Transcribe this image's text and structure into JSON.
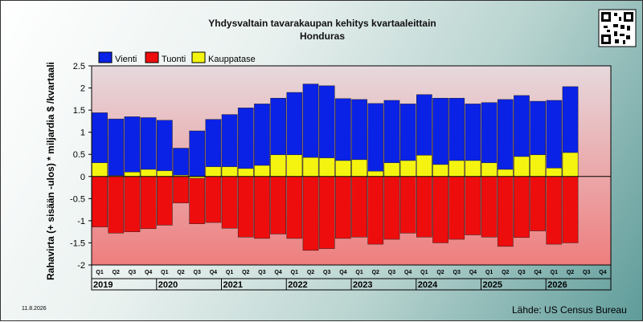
{
  "chart_data": {
    "type": "bar",
    "title": "Yhdysvaltain tavarakaupan kehitys kvartaaleittain",
    "subtitle": "Honduras",
    "ylabel": "Rahavirta (+ sisään -ulos)  * miljardia $ /kvartaali",
    "ylim": [
      -2,
      2.5
    ],
    "yticks": [
      "2.5",
      "2",
      "1.5",
      "1",
      "0.5",
      "0",
      "-0.5",
      "-1",
      "-1.5",
      "-2"
    ],
    "grid": false,
    "legend_position": "top-left",
    "categories": [
      "Q1",
      "Q2",
      "Q3",
      "Q4",
      "Q1",
      "Q2",
      "Q3",
      "Q4",
      "Q1",
      "Q2",
      "Q3",
      "Q4",
      "Q1",
      "Q2",
      "Q3",
      "Q4",
      "Q1",
      "Q2",
      "Q3",
      "Q4",
      "Q1",
      "Q2",
      "Q3",
      "Q4",
      "Q1",
      "Q2",
      "Q3",
      "Q4",
      "Q1",
      "Q2",
      "Q3",
      "Q4"
    ],
    "years": [
      "2019",
      "2020",
      "2021",
      "2022",
      "2023",
      "2024",
      "2025",
      "2026"
    ],
    "series": [
      {
        "name": "Vienti",
        "color": "#0a22e6",
        "values": [
          1.44,
          1.3,
          1.35,
          1.33,
          1.27,
          0.64,
          1.03,
          1.29,
          1.4,
          1.55,
          1.64,
          1.77,
          1.9,
          2.09,
          2.05,
          1.76,
          1.74,
          1.65,
          1.72,
          1.64,
          1.85,
          1.77,
          1.77,
          1.64,
          1.67,
          1.74,
          1.83,
          1.7,
          1.72,
          2.03,
          null,
          null
        ]
      },
      {
        "name": "Tuonti",
        "color": "#ee0d0d",
        "values": [
          -1.14,
          -1.28,
          -1.25,
          -1.18,
          -1.1,
          -0.6,
          -1.07,
          -1.04,
          -1.17,
          -1.37,
          -1.4,
          -1.3,
          -1.4,
          -1.67,
          -1.63,
          -1.4,
          -1.37,
          -1.53,
          -1.42,
          -1.28,
          -1.37,
          -1.5,
          -1.42,
          -1.32,
          -1.37,
          -1.58,
          -1.38,
          -1.23,
          -1.53,
          -1.5,
          null,
          null
        ]
      },
      {
        "name": "Kauppatase",
        "color": "#f4f410",
        "values": [
          0.31,
          0.02,
          0.1,
          0.16,
          0.13,
          0.03,
          -0.04,
          0.22,
          0.22,
          0.18,
          0.25,
          0.49,
          0.49,
          0.43,
          0.42,
          0.36,
          0.38,
          0.12,
          0.31,
          0.36,
          0.48,
          0.27,
          0.36,
          0.36,
          0.31,
          0.16,
          0.45,
          0.49,
          0.19,
          0.54,
          null,
          null
        ]
      }
    ]
  },
  "footer": {
    "date": "11.8.2026",
    "source": "Lähde: US Census Bureau"
  },
  "colors": {
    "plot_top": "#e6d9dd",
    "plot_bottom": "#ee7e7e",
    "bar_stroke": "#222222"
  }
}
